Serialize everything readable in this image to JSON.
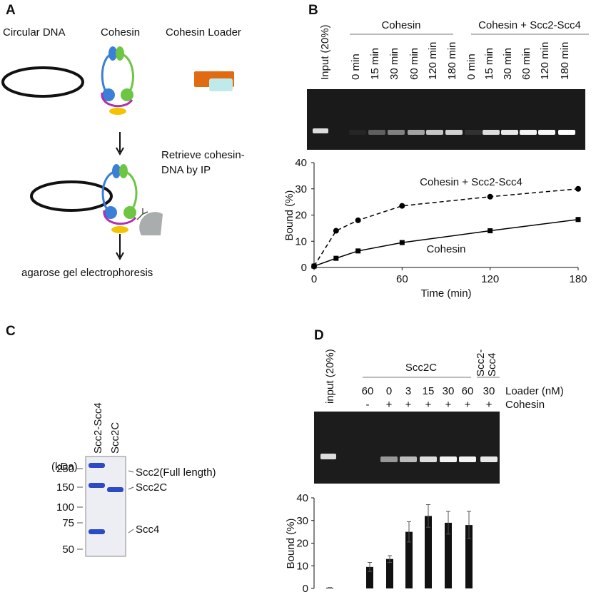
{
  "panel_labels": [
    "A",
    "B",
    "C",
    "D"
  ],
  "diagram_a": {
    "labels": [
      "Circular DNA",
      "Cohesin",
      "Cohesin Loader"
    ],
    "step": [
      "Retrieve cohesin-",
      "DNA by IP"
    ],
    "result": "agarose gel electrophoresis"
  },
  "gel_b": {
    "input": "Input (20%)",
    "groups": [
      "Cohesin",
      "Cohesin + Scc2-Scc4"
    ],
    "lanes": [
      [
        "0 min",
        "15 min",
        "30 min",
        "60 min",
        "120 min",
        "180 min"
      ],
      [
        "0 min",
        "15 min",
        "30 min",
        "60 min",
        "120 min",
        "180 min"
      ]
    ]
  },
  "chart_data": [
    {
      "type": "line",
      "x": [
        0,
        15,
        30,
        60,
        120,
        180
      ],
      "series": [
        {
          "name": "Cohesin + Scc2-Scc4",
          "color": "#000000",
          "linestyle": "dashed",
          "marker": "circle",
          "values": [
            0.5,
            14,
            18,
            23.5,
            27,
            30
          ]
        },
        {
          "name": "Cohesin",
          "color": "#000000",
          "linestyle": "solid",
          "marker": "square",
          "values": [
            0.5,
            3.5,
            6.3,
            9.5,
            14,
            18.3
          ]
        }
      ],
      "xlim": [
        0,
        180
      ],
      "xticks": [
        0,
        60,
        120,
        180
      ],
      "ylim": [
        0,
        40
      ],
      "yticks": [
        0,
        10,
        20,
        30,
        40
      ],
      "xlabel": "Time (min)",
      "ylabel": "Bound (%)"
    },
    {
      "type": "bar",
      "categories": [
        "60",
        "0",
        "3",
        "15",
        "30",
        "60",
        "30"
      ],
      "values": [
        0.3,
        9.5,
        13,
        25,
        32,
        29,
        28
      ],
      "errors": [
        0.1,
        2,
        1.5,
        4.5,
        5,
        5,
        6
      ],
      "color": "#111111",
      "ylim": [
        0,
        40
      ],
      "yticks": [
        0,
        10,
        20,
        30,
        40
      ],
      "ylabel": "Bound (%)"
    }
  ],
  "gel_c": {
    "unit": "(kDa)",
    "lanes": [
      "Scc2-Scc4",
      "Scc2C"
    ],
    "markers": [
      "250",
      "150",
      "100",
      "75",
      "50"
    ],
    "bands": [
      "Scc2(Full length)",
      "Scc2C",
      "Scc4"
    ]
  },
  "gel_d": {
    "input": "input (20%)",
    "groups": [
      "Scc2C",
      [
        "Scc2-",
        "Scc4"
      ]
    ],
    "loader_label": "Loader (nM)",
    "cohesin_label": "Cohesin",
    "cohesin": [
      "-",
      "+",
      "+",
      "+",
      "+",
      "+",
      "+"
    ]
  }
}
